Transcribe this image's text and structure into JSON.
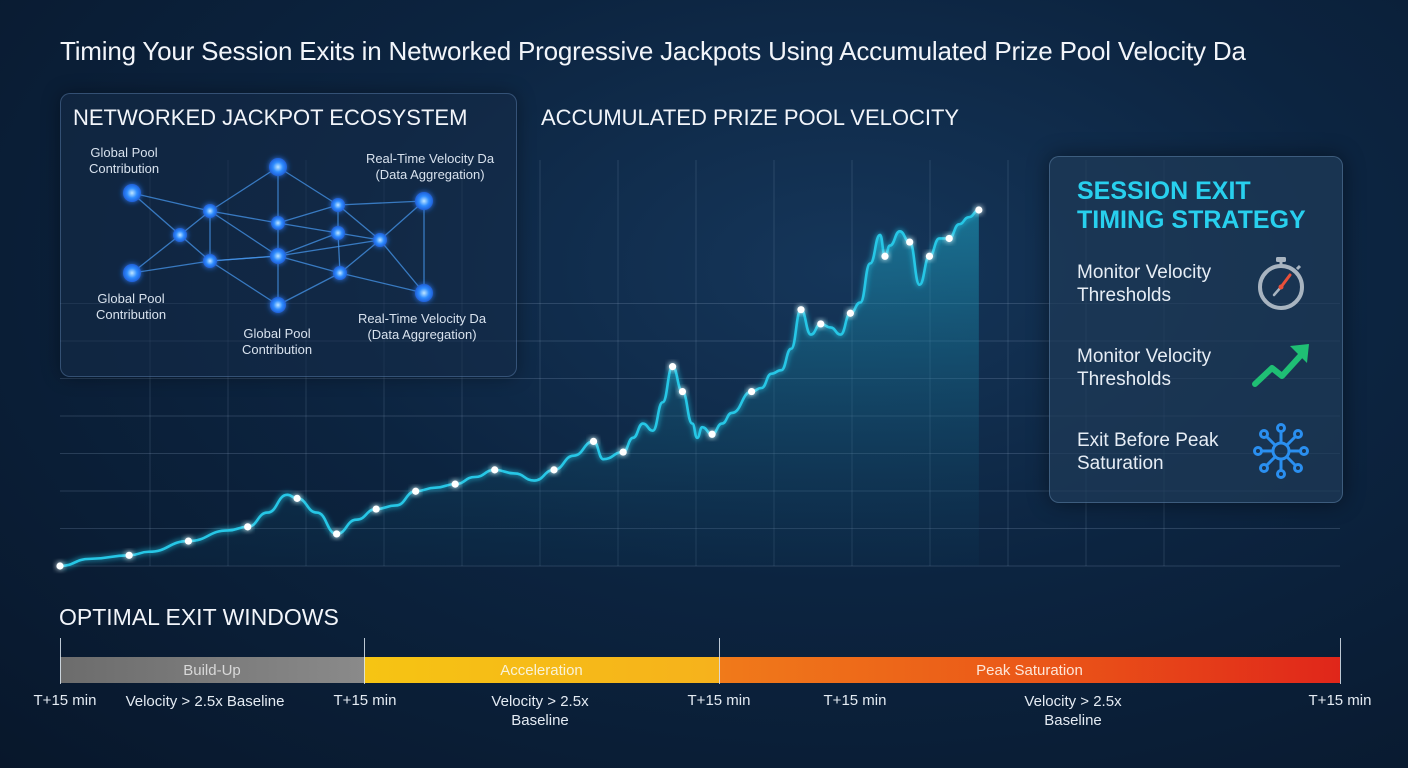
{
  "page_title": "Timing Your Session Exits in Networked Progressive Jackpots Using Accumulated Prize Pool Velocity Da",
  "network": {
    "title": "NETWORKED JACKPOT ECOSYSTEM",
    "labels": {
      "top_left": [
        "Global Pool",
        "Contribution"
      ],
      "top_right": [
        "Real-Time Velocity Da",
        "(Data Aggregation)"
      ],
      "mid_left": [
        "Global Pool",
        "Contribution"
      ],
      "bottom_center": [
        "Global Pool",
        "Contribution"
      ],
      "bottom_right": [
        "Real-Time Velocity Da",
        "(Data Aggregation)"
      ]
    }
  },
  "chart_title": "ACCUMULATED PRIZE POOL VELOCITY",
  "chart_data": {
    "type": "area",
    "title": "ACCUMULATED PRIZE POOL VELOCITY",
    "xlabel": "",
    "ylabel": "",
    "grid": true,
    "color": "#28c7e6",
    "points": [
      [
        0.0,
        0.0
      ],
      [
        0.03,
        0.02
      ],
      [
        0.07,
        0.03
      ],
      [
        0.09,
        0.04
      ],
      [
        0.13,
        0.07
      ],
      [
        0.17,
        0.1
      ],
      [
        0.19,
        0.11
      ],
      [
        0.21,
        0.15
      ],
      [
        0.23,
        0.2
      ],
      [
        0.24,
        0.19
      ],
      [
        0.26,
        0.15
      ],
      [
        0.28,
        0.09
      ],
      [
        0.3,
        0.13
      ],
      [
        0.32,
        0.16
      ],
      [
        0.34,
        0.17
      ],
      [
        0.36,
        0.21
      ],
      [
        0.38,
        0.22
      ],
      [
        0.4,
        0.23
      ],
      [
        0.42,
        0.25
      ],
      [
        0.44,
        0.27
      ],
      [
        0.46,
        0.26
      ],
      [
        0.48,
        0.24
      ],
      [
        0.5,
        0.27
      ],
      [
        0.52,
        0.31
      ],
      [
        0.54,
        0.35
      ],
      [
        0.55,
        0.3
      ],
      [
        0.57,
        0.32
      ],
      [
        0.58,
        0.36
      ],
      [
        0.59,
        0.4
      ],
      [
        0.6,
        0.38
      ],
      [
        0.61,
        0.46
      ],
      [
        0.62,
        0.56
      ],
      [
        0.63,
        0.49
      ],
      [
        0.64,
        0.4
      ],
      [
        0.645,
        0.36
      ],
      [
        0.65,
        0.39
      ],
      [
        0.66,
        0.37
      ],
      [
        0.67,
        0.4
      ],
      [
        0.68,
        0.43
      ],
      [
        0.7,
        0.49
      ],
      [
        0.71,
        0.5
      ],
      [
        0.72,
        0.54
      ],
      [
        0.73,
        0.55
      ],
      [
        0.74,
        0.61
      ],
      [
        0.75,
        0.72
      ],
      [
        0.76,
        0.65
      ],
      [
        0.77,
        0.68
      ],
      [
        0.78,
        0.67
      ],
      [
        0.79,
        0.65
      ],
      [
        0.8,
        0.71
      ],
      [
        0.81,
        0.74
      ],
      [
        0.82,
        0.85
      ],
      [
        0.83,
        0.93
      ],
      [
        0.835,
        0.87
      ],
      [
        0.84,
        0.9
      ],
      [
        0.85,
        0.94
      ],
      [
        0.86,
        0.91
      ],
      [
        0.87,
        0.79
      ],
      [
        0.88,
        0.87
      ],
      [
        0.89,
        0.92
      ],
      [
        0.9,
        0.92
      ],
      [
        0.91,
        0.96
      ],
      [
        0.92,
        0.98
      ],
      [
        0.93,
        1.0
      ]
    ],
    "ylim": [
      0,
      1
    ]
  },
  "strategy": {
    "title": "SESSION EXIT TIMING STRATEGY",
    "items": [
      {
        "text": "Monitor Velocity Thresholds",
        "icon": "stopwatch-icon"
      },
      {
        "text": "Monitor Velocity Thresholds",
        "icon": "trend-up-icon"
      },
      {
        "text": "Exit Before Peak Saturation",
        "icon": "network-icon"
      }
    ]
  },
  "exit_windows": {
    "title": "OPTIMAL EXIT WINDOWS",
    "segments": [
      {
        "label": "Build-Up",
        "color": "#7c7c7c"
      },
      {
        "label": "Acceleration",
        "color": "#f7b818"
      },
      {
        "label": "Peak Saturation",
        "color": "#ea4a18"
      }
    ],
    "time_labels": [
      "T+15 min",
      "T+15 min",
      "T+15 min",
      "T+15 min",
      "T+15 min"
    ],
    "conditions": [
      "Velocity > 2.5x Baseline",
      "Velocity > 2.5x\nBaseline",
      "Velocity > 2.5x\nBaseline"
    ]
  }
}
